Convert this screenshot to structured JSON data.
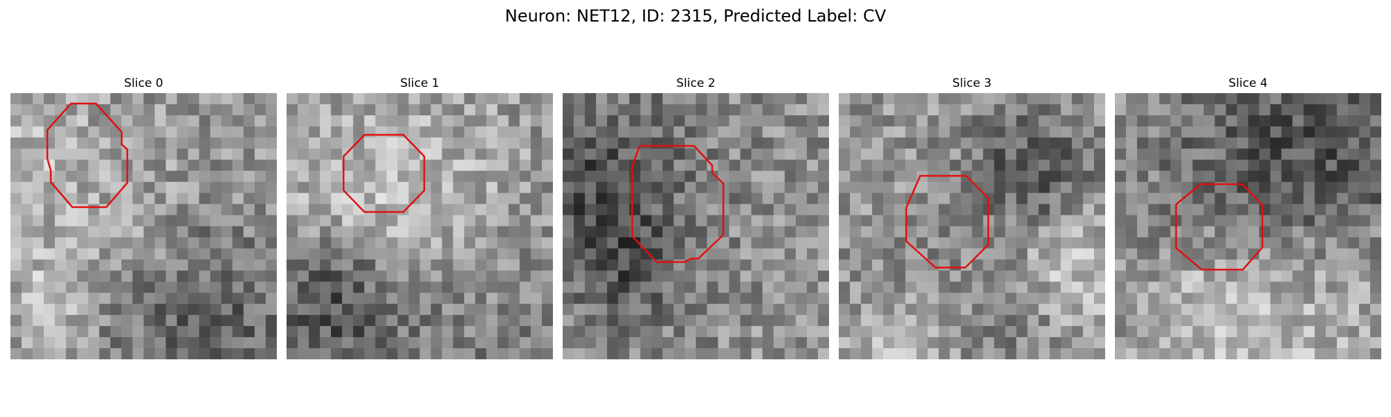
{
  "figure": {
    "title": "Neuron: NET12, ID: 2315, Predicted Label: CV"
  },
  "colors": {
    "roi": "#e01010"
  },
  "slices": [
    {
      "title": "Slice 0",
      "seed": 11
    },
    {
      "title": "Slice 1",
      "seed": 23
    },
    {
      "title": "Slice 2",
      "seed": 37
    },
    {
      "title": "Slice 3",
      "seed": 41
    },
    {
      "title": "Slice 4",
      "seed": 59
    }
  ]
}
